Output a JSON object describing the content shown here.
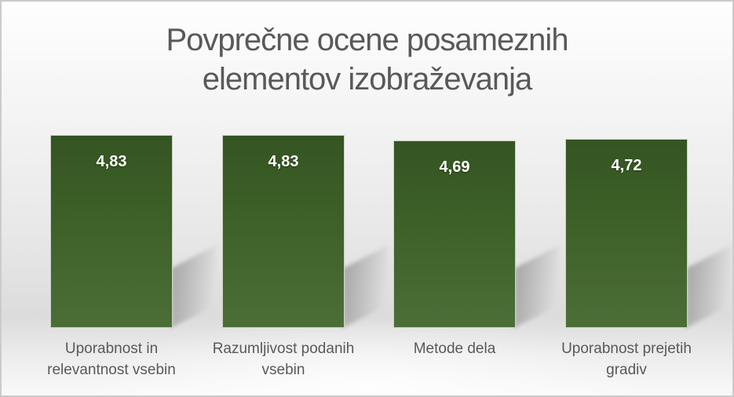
{
  "title": {
    "line1": "Povprečne ocene posameznih",
    "line2": "elementov izobraževanja",
    "color": "#595959"
  },
  "chart_data": {
    "type": "bar",
    "title": "Povprečne ocene posameznih elementov izobraževanja",
    "categories": [
      "Uporabnost in relevantnost vsebin",
      "Razumljivost podanih vsebin",
      "Metode dela",
      "Uporabnost prejetih gradiv"
    ],
    "values": [
      4.83,
      4.83,
      4.69,
      4.72
    ],
    "value_labels": [
      "4,83",
      "4,83",
      "4,69",
      "4,72"
    ],
    "xlabel": "",
    "ylabel": "",
    "ylim": [
      0,
      5
    ],
    "grid": false,
    "legend": false,
    "axes_visible": false,
    "bar_color": "#3e6328",
    "value_label_color": "#ffffff",
    "category_label_color": "#595959",
    "title_color": "#595959",
    "background": "gray-gradient"
  }
}
